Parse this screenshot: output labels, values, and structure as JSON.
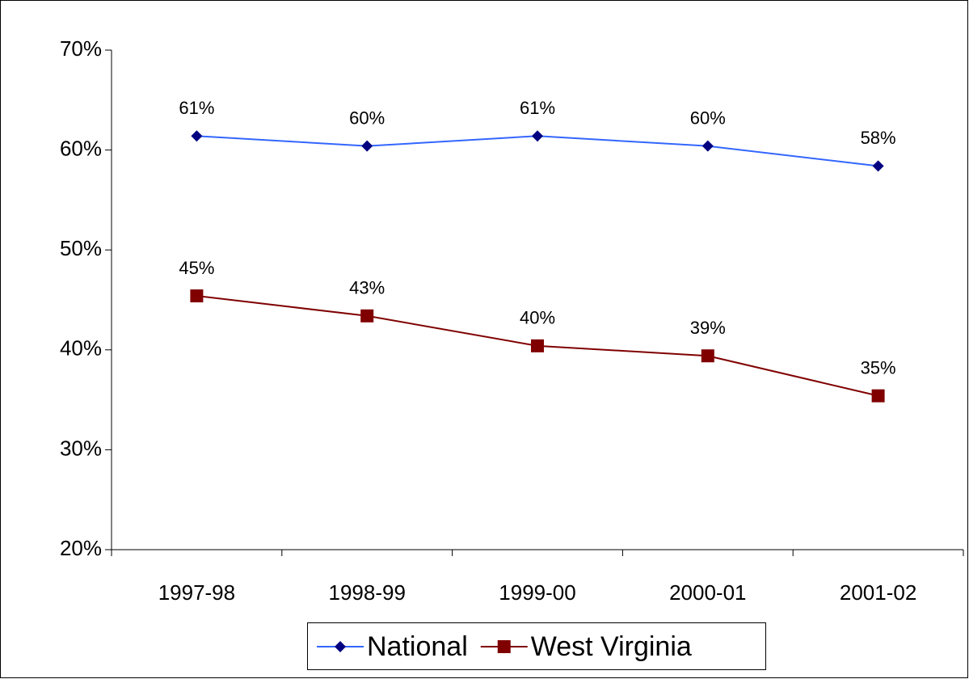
{
  "chart_data": {
    "type": "line",
    "categories": [
      "1997-98",
      "1998-99",
      "1999-00",
      "2000-01",
      "2001-02"
    ],
    "series": [
      {
        "name": "National",
        "color": "#3366ff",
        "marker_color": "#000080",
        "marker": "diamond",
        "values": [
          61.4,
          60.4,
          61.4,
          60.4,
          58.4
        ],
        "value_labels": [
          "61%",
          "60%",
          "61%",
          "60%",
          "58%"
        ]
      },
      {
        "name": "West Virginia",
        "color": "#800000",
        "marker_color": "#800000",
        "marker": "square",
        "values": [
          45.4,
          43.4,
          40.4,
          39.4,
          35.4
        ],
        "value_labels": [
          "45%",
          "43%",
          "40%",
          "39%",
          "35%"
        ]
      }
    ],
    "ylim": [
      20,
      70
    ],
    "yticks": [
      {
        "value": 20,
        "label": "20%"
      },
      {
        "value": 30,
        "label": "30%"
      },
      {
        "value": 40,
        "label": "40%"
      },
      {
        "value": 50,
        "label": "50%"
      },
      {
        "value": 60,
        "label": "60%"
      },
      {
        "value": 70,
        "label": "70%"
      }
    ],
    "grid": false,
    "legend": "bottom"
  }
}
